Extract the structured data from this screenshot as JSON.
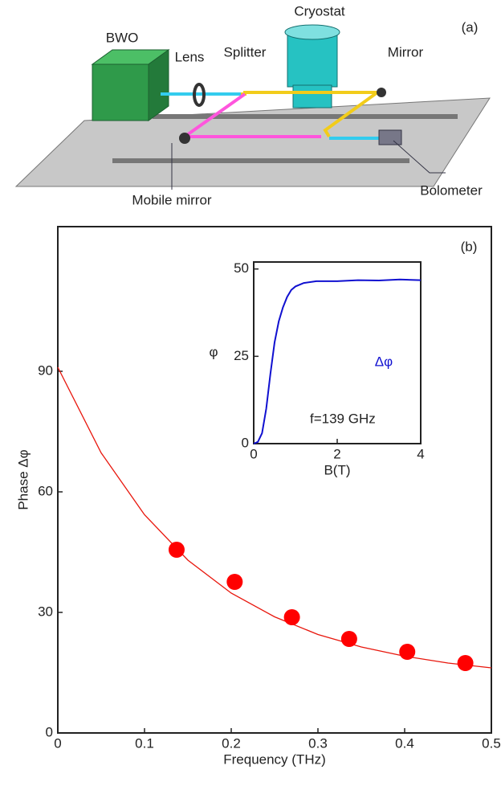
{
  "diagram": {
    "panel_label": "(a)",
    "labels": {
      "cryostat": "Cryostat",
      "bwo": "BWO",
      "lens": "Lens",
      "splitter": "Splitter",
      "mirror": "Mirror",
      "mobile_mirror": "Mobile mirror",
      "bolometer": "Bolometer"
    }
  },
  "chart_data": [
    {
      "type": "scatter",
      "panel_label": "(b)",
      "x_label": "Frequency (THz)",
      "y_label": "Phase Δφ",
      "x": [
        0.137,
        0.204,
        0.27,
        0.336,
        0.403,
        0.47
      ],
      "values": [
        45.6,
        37.6,
        28.8,
        23.4,
        20.2,
        17.4
      ],
      "color": "#ff0000",
      "fit": {
        "x": [
          0,
          0.05,
          0.1,
          0.15,
          0.2,
          0.25,
          0.3,
          0.35,
          0.4,
          0.45,
          0.5
        ],
        "values": [
          91,
          69.7,
          54.3,
          43,
          34.8,
          28.9,
          24.5,
          21.4,
          19.1,
          17.4,
          16.2
        ],
        "color": "#e8160c"
      },
      "xlim": [
        0,
        0.5
      ],
      "ylim": [
        0,
        126
      ],
      "xticks": [
        0,
        0.1,
        0.2,
        0.3,
        0.4,
        0.5
      ],
      "yticks": [
        0,
        30,
        60,
        90
      ]
    },
    {
      "type": "line",
      "x_label": "B(T)",
      "y_label": "φ",
      "annotations": [
        "f=139 GHz",
        "Δφ"
      ],
      "x": [
        0,
        0.1,
        0.2,
        0.3,
        0.4,
        0.5,
        0.6,
        0.7,
        0.8,
        0.9,
        1.0,
        1.2,
        1.5,
        2,
        2.5,
        3,
        3.5,
        4
      ],
      "values": [
        0,
        0.5,
        3,
        10,
        20,
        29,
        35,
        39,
        42,
        44,
        45,
        46,
        46.5,
        46.5,
        46.8,
        46.7,
        47,
        46.8
      ],
      "color": "#1010d0",
      "xlim": [
        0,
        4
      ],
      "ylim": [
        0,
        52
      ],
      "xticks": [
        0,
        2,
        4
      ],
      "yticks": [
        0,
        25,
        50
      ]
    }
  ]
}
